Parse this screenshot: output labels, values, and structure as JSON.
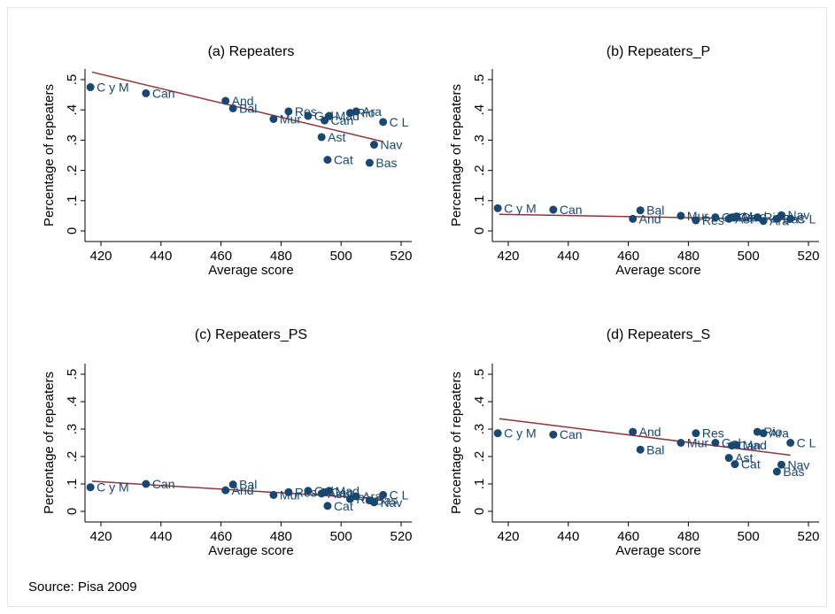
{
  "source_note": "Source: Pisa 2009",
  "colors": {
    "point": "#1a476f",
    "fit": "#90353b",
    "text": "#1a476f",
    "axis": "#000000"
  },
  "chart_data": [
    {
      "type": "scatter",
      "title": "(a) Repeaters",
      "xlabel": "Average score",
      "ylabel": "Percentage of repeaters",
      "xlim": [
        415,
        520
      ],
      "ylim": [
        0,
        0.5
      ],
      "xticks": [
        "420",
        "440",
        "460",
        "480",
        "500",
        "520"
      ],
      "yticks": [
        "0",
        ".1",
        ".2",
        ".3",
        ".4",
        ".5"
      ],
      "grid": false,
      "fit_line": {
        "x": [
          417,
          514
        ],
        "y": [
          0.525,
          0.295
        ]
      },
      "points": [
        {
          "label": "C y M",
          "x": 416.5,
          "y": 0.475
        },
        {
          "label": "Can",
          "x": 435,
          "y": 0.455
        },
        {
          "label": "And",
          "x": 461.5,
          "y": 0.43
        },
        {
          "label": "Bal",
          "x": 464,
          "y": 0.405
        },
        {
          "label": "Mur",
          "x": 477.5,
          "y": 0.37
        },
        {
          "label": "Res",
          "x": 482.5,
          "y": 0.395
        },
        {
          "label": "Gal",
          "x": 489,
          "y": 0.38
        },
        {
          "label": "Ast",
          "x": 493.5,
          "y": 0.31
        },
        {
          "label": "Can",
          "x": 494.5,
          "y": 0.365
        },
        {
          "label": "Cat",
          "x": 495.5,
          "y": 0.235
        },
        {
          "label": "Mad",
          "x": 496,
          "y": 0.38
        },
        {
          "label": "Rio",
          "x": 503,
          "y": 0.39
        },
        {
          "label": "Ara",
          "x": 505,
          "y": 0.395
        },
        {
          "label": "Bas",
          "x": 509.5,
          "y": 0.225
        },
        {
          "label": "Nav",
          "x": 511,
          "y": 0.285
        },
        {
          "label": "C L",
          "x": 514,
          "y": 0.36
        }
      ]
    },
    {
      "type": "scatter",
      "title": "(b) Repeaters_P",
      "xlabel": "Average score",
      "ylabel": "Percentage of repeaters",
      "xlim": [
        415,
        520
      ],
      "ylim": [
        0,
        0.5
      ],
      "xticks": [
        "420",
        "440",
        "460",
        "480",
        "500",
        "520"
      ],
      "yticks": [
        "0",
        ".1",
        ".2",
        ".3",
        ".4",
        ".5"
      ],
      "grid": false,
      "fit_line": {
        "x": [
          417,
          514
        ],
        "y": [
          0.055,
          0.038
        ]
      },
      "points": [
        {
          "label": "C y M",
          "x": 416.5,
          "y": 0.075
        },
        {
          "label": "Can",
          "x": 435,
          "y": 0.07
        },
        {
          "label": "And",
          "x": 461.5,
          "y": 0.04
        },
        {
          "label": "Bal",
          "x": 464,
          "y": 0.068
        },
        {
          "label": "Mur",
          "x": 477.5,
          "y": 0.05
        },
        {
          "label": "Res",
          "x": 482.5,
          "y": 0.035
        },
        {
          "label": "Gal",
          "x": 489,
          "y": 0.045
        },
        {
          "label": "Ast",
          "x": 493.5,
          "y": 0.04
        },
        {
          "label": "Can",
          "x": 494.5,
          "y": 0.045
        },
        {
          "label": "Cat",
          "x": 495.5,
          "y": 0.045
        },
        {
          "label": "Mad",
          "x": 496,
          "y": 0.048
        },
        {
          "label": "Rio",
          "x": 503,
          "y": 0.045
        },
        {
          "label": "Ara",
          "x": 505,
          "y": 0.033
        },
        {
          "label": "Bas",
          "x": 509.5,
          "y": 0.04
        },
        {
          "label": "Nav",
          "x": 511,
          "y": 0.052
        },
        {
          "label": "C L",
          "x": 514,
          "y": 0.04
        }
      ]
    },
    {
      "type": "scatter",
      "title": "(c) Repeaters_PS",
      "xlabel": "Average score",
      "ylabel": "Percentage of repeaters",
      "xlim": [
        415,
        520
      ],
      "ylim": [
        0,
        0.5
      ],
      "xticks": [
        "420",
        "440",
        "460",
        "480",
        "500",
        "520"
      ],
      "yticks": [
        "0",
        ".1",
        ".2",
        ".3",
        ".4",
        ".5"
      ],
      "grid": false,
      "fit_line": {
        "x": [
          417,
          514
        ],
        "y": [
          0.11,
          0.045
        ]
      },
      "points": [
        {
          "label": "C y M",
          "x": 416.5,
          "y": 0.088
        },
        {
          "label": "Can",
          "x": 435,
          "y": 0.1
        },
        {
          "label": "And",
          "x": 461.5,
          "y": 0.077
        },
        {
          "label": "Bal",
          "x": 464,
          "y": 0.098
        },
        {
          "label": "Mur",
          "x": 477.5,
          "y": 0.06
        },
        {
          "label": "Res",
          "x": 482.5,
          "y": 0.07
        },
        {
          "label": "Gal",
          "x": 489,
          "y": 0.075
        },
        {
          "label": "Ast",
          "x": 493.5,
          "y": 0.065
        },
        {
          "label": "Can",
          "x": 494.5,
          "y": 0.07
        },
        {
          "label": "Cat",
          "x": 495.5,
          "y": 0.02
        },
        {
          "label": "Mad",
          "x": 496,
          "y": 0.075
        },
        {
          "label": "Rio",
          "x": 503,
          "y": 0.045
        },
        {
          "label": "Ara",
          "x": 505,
          "y": 0.055
        },
        {
          "label": "Bas",
          "x": 509.5,
          "y": 0.04
        },
        {
          "label": "Nav",
          "x": 511,
          "y": 0.033
        },
        {
          "label": "C L",
          "x": 514,
          "y": 0.06
        }
      ]
    },
    {
      "type": "scatter",
      "title": "(d) Repeaters_S",
      "xlabel": "Average score",
      "ylabel": "Percentage of repeaters",
      "xlim": [
        415,
        520
      ],
      "ylim": [
        0,
        0.5
      ],
      "xticks": [
        "420",
        "440",
        "460",
        "480",
        "500",
        "520"
      ],
      "yticks": [
        "0",
        ".1",
        ".2",
        ".3",
        ".4",
        ".5"
      ],
      "grid": false,
      "fit_line": {
        "x": [
          417,
          514
        ],
        "y": [
          0.338,
          0.205
        ]
      },
      "points": [
        {
          "label": "C y M",
          "x": 416.5,
          "y": 0.285
        },
        {
          "label": "Can",
          "x": 435,
          "y": 0.28
        },
        {
          "label": "And",
          "x": 461.5,
          "y": 0.29
        },
        {
          "label": "Bal",
          "x": 464,
          "y": 0.225
        },
        {
          "label": "Mur",
          "x": 477.5,
          "y": 0.25
        },
        {
          "label": "Res",
          "x": 482.5,
          "y": 0.285
        },
        {
          "label": "Gal",
          "x": 489,
          "y": 0.25
        },
        {
          "label": "Ast",
          "x": 493.5,
          "y": 0.195
        },
        {
          "label": "Can",
          "x": 494.5,
          "y": 0.24
        },
        {
          "label": "Cat",
          "x": 495.5,
          "y": 0.172
        },
        {
          "label": "Mad",
          "x": 496,
          "y": 0.242
        },
        {
          "label": "Rio",
          "x": 503,
          "y": 0.29
        },
        {
          "label": "Ara",
          "x": 505,
          "y": 0.285
        },
        {
          "label": "Bas",
          "x": 509.5,
          "y": 0.145
        },
        {
          "label": "Nav",
          "x": 511,
          "y": 0.17
        },
        {
          "label": "C L",
          "x": 514,
          "y": 0.25
        }
      ]
    }
  ]
}
